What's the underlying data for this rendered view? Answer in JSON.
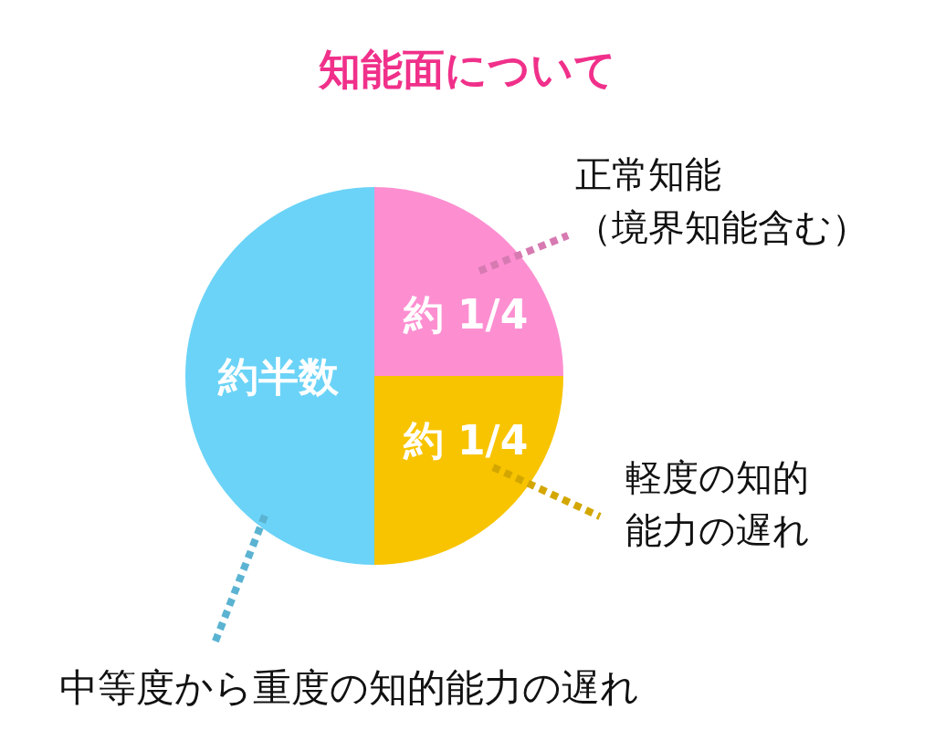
{
  "chart_data": {
    "type": "pie",
    "title": "知能面について",
    "categories": [
      "正常知能（境界知能含む）",
      "軽度の知的能力の遅れ",
      "中等度から重度の知的能力の遅れ"
    ],
    "values": [
      25,
      25,
      50
    ],
    "colors": [
      "#fd8fd1",
      "#f8c400",
      "#6bd3f7"
    ],
    "value_labels": [
      "約 1/4",
      "約 1/4",
      "約半数"
    ],
    "legend": false
  }
}
